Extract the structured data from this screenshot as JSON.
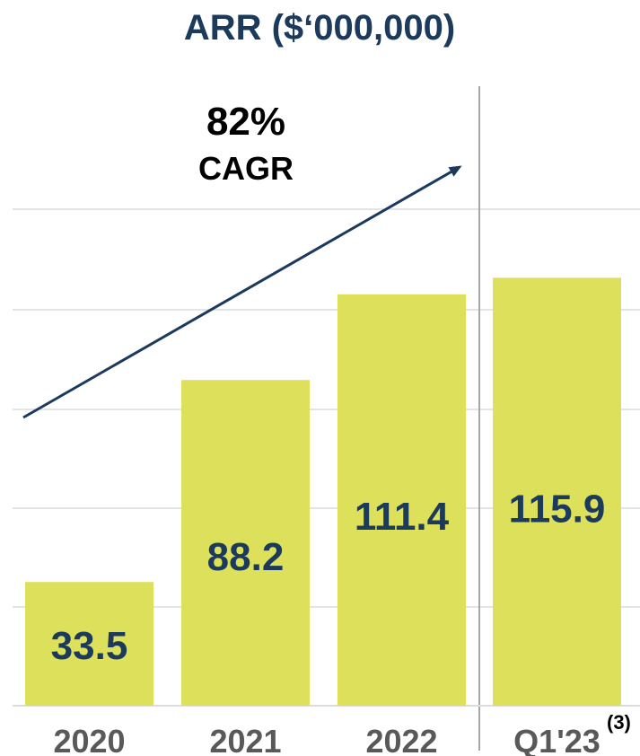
{
  "chart_data": {
    "type": "bar",
    "title": "ARR ($‘000,000)",
    "categories": [
      "2020",
      "2021",
      "2022",
      "Q1'23"
    ],
    "values": [
      33.5,
      88.2,
      111.4,
      115.9
    ],
    "value_labels": [
      "33.5",
      "88.2",
      "111.4",
      "115.9"
    ],
    "xlabel": "",
    "ylabel": "",
    "ylim": [
      0,
      124
    ],
    "grid": true,
    "legend": "none",
    "annotation": {
      "value": "82%",
      "label": "CAGR"
    },
    "footnote": "(3)",
    "bar_color": "#dde05b",
    "label_color": "#1b3a5c",
    "arrow_color": "#1b3a5c",
    "grid_color": "#dcdcdc",
    "divider_color": "#a6a6a6",
    "tick_color": "#595959"
  }
}
